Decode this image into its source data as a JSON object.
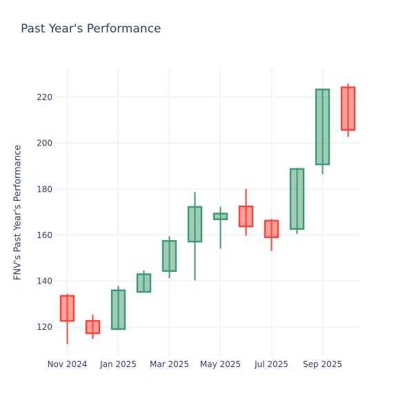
{
  "title": "Past Year's Performance",
  "chart_data": {
    "type": "candlestick",
    "title": "Past Year's Performance",
    "xlabel": "",
    "ylabel": "FNV's Past Year's Performance",
    "categories": [
      "Nov 2024",
      "Dec 2024",
      "Jan 2025",
      "Feb 2025",
      "Mar 2025",
      "Apr 2025",
      "May 2025",
      "Jun 2025",
      "Jul 2025",
      "Aug 2025",
      "Sep 2025",
      "Oct 2025"
    ],
    "series": [
      {
        "month": "Nov 2024",
        "open": 133.5,
        "high": 134.4,
        "low": 112.5,
        "close": 122.6
      },
      {
        "month": "Dec 2024",
        "open": 122.6,
        "high": 125.3,
        "low": 114.8,
        "close": 117.2
      },
      {
        "month": "Jan 2025",
        "open": 119.0,
        "high": 137.8,
        "low": 118.8,
        "close": 135.9
      },
      {
        "month": "Feb 2025",
        "open": 135.2,
        "high": 144.6,
        "low": 135.0,
        "close": 142.9
      },
      {
        "month": "Mar 2025",
        "open": 144.3,
        "high": 159.4,
        "low": 141.2,
        "close": 157.4
      },
      {
        "month": "Apr 2025",
        "open": 157.1,
        "high": 178.7,
        "low": 140.2,
        "close": 172.2
      },
      {
        "month": "May 2025",
        "open": 166.8,
        "high": 172.3,
        "low": 154.0,
        "close": 169.3
      },
      {
        "month": "Jun 2025",
        "open": 172.4,
        "high": 180.0,
        "low": 159.7,
        "close": 163.7
      },
      {
        "month": "Jul 2025",
        "open": 166.2,
        "high": 167.0,
        "low": 153.0,
        "close": 159.0
      },
      {
        "month": "Aug 2025",
        "open": 162.6,
        "high": 189.2,
        "low": 160.4,
        "close": 188.7
      },
      {
        "month": "Sep 2025",
        "open": 190.7,
        "high": 223.3,
        "low": 186.4,
        "close": 223.3
      },
      {
        "month": "Oct 2025",
        "open": 224.2,
        "high": 225.9,
        "low": 202.7,
        "close": 205.7
      }
    ],
    "xticks": {
      "labels": [
        "Nov 2024",
        "Jan 2025",
        "Mar 2025",
        "May 2025",
        "Jul 2025",
        "Sep 2025"
      ],
      "indices": [
        0,
        2,
        4,
        6,
        8,
        10
      ]
    },
    "yticks": [
      120,
      140,
      160,
      180,
      200,
      220
    ],
    "ylim": [
      107.0,
      232.5
    ],
    "grid": true,
    "legend_position": "none",
    "colors": {
      "increasing_line": "#3d9970",
      "increasing_fill": "rgba(61,153,112,0.5)",
      "decreasing_line": "#ff4136",
      "decreasing_fill": "rgba(255,65,54,0.5)",
      "text": "#2a3f5f",
      "grid": "#ebf0f8",
      "background": "#ffffff"
    }
  }
}
